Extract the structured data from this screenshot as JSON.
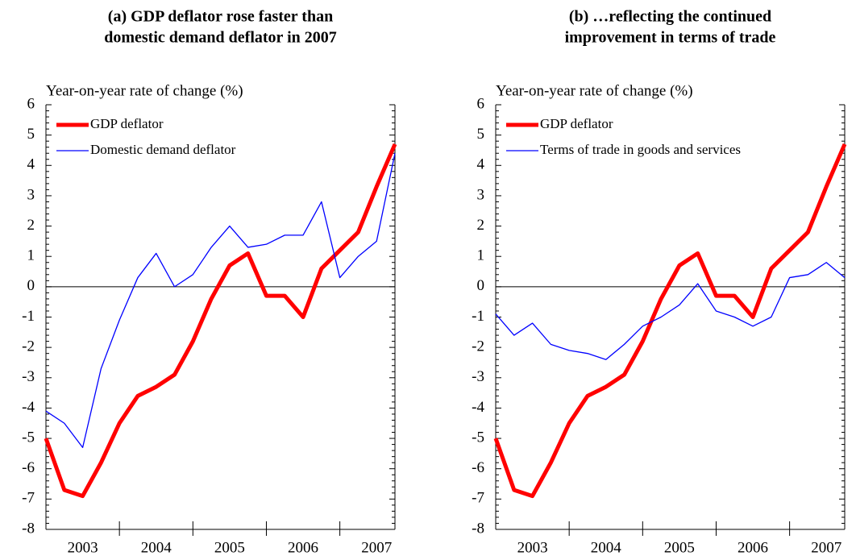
{
  "chart_data": [
    {
      "type": "line",
      "title": [
        "(a) GDP deflator rose faster than",
        "domestic demand deflator in 2007"
      ],
      "y_label": "Year-on-year rate of change (%)",
      "categories": [
        null,
        null,
        "2003",
        null,
        null,
        null,
        "2004",
        null,
        null,
        null,
        "2005",
        null,
        null,
        null,
        "2006",
        null,
        null,
        null,
        "2007",
        null
      ],
      "ylim": [
        -8,
        6
      ],
      "yticks": [
        -8,
        -7,
        -6,
        -5,
        -4,
        -3,
        -2,
        -1,
        0,
        1,
        2,
        3,
        4,
        5,
        6
      ],
      "series": [
        {
          "name": "GDP deflator",
          "color": "#ff0000",
          "values": [
            -5.0,
            -6.7,
            -6.9,
            -5.8,
            -4.5,
            -3.6,
            -3.3,
            -2.9,
            -1.8,
            -0.4,
            0.7,
            1.1,
            -0.3,
            -0.3,
            -1.0,
            0.6,
            1.2,
            1.8,
            3.3,
            4.7
          ]
        },
        {
          "name": "Domestic demand deflator",
          "color": "#0000ff",
          "values": [
            -4.1,
            -4.5,
            -5.3,
            -2.7,
            -1.1,
            0.3,
            1.1,
            0.0,
            0.4,
            1.3,
            2.0,
            1.3,
            1.4,
            1.7,
            1.7,
            2.8,
            0.3,
            1.0,
            1.5,
            4.4
          ]
        }
      ]
    },
    {
      "type": "line",
      "title": [
        "(b) …reflecting the continued",
        "improvement in terms of trade"
      ],
      "y_label": "Year-on-year rate of change (%)",
      "categories": [
        null,
        null,
        "2003",
        null,
        null,
        null,
        "2004",
        null,
        null,
        null,
        "2005",
        null,
        null,
        null,
        "2006",
        null,
        null,
        null,
        "2007",
        null
      ],
      "ylim": [
        -8,
        6
      ],
      "yticks": [
        -8,
        -7,
        -6,
        -5,
        -4,
        -3,
        -2,
        -1,
        0,
        1,
        2,
        3,
        4,
        5,
        6
      ],
      "series": [
        {
          "name": "GDP deflator",
          "color": "#ff0000",
          "values": [
            -5.0,
            -6.7,
            -6.9,
            -5.8,
            -4.5,
            -3.6,
            -3.3,
            -2.9,
            -1.8,
            -0.4,
            0.7,
            1.1,
            -0.3,
            -0.3,
            -1.0,
            0.6,
            1.2,
            1.8,
            3.3,
            4.7
          ]
        },
        {
          "name": "Terms of trade in goods and services",
          "color": "#0000ff",
          "values": [
            -0.9,
            -1.6,
            -1.2,
            -1.9,
            -2.1,
            -2.2,
            -2.4,
            -1.9,
            -1.3,
            -1.0,
            -0.6,
            0.1,
            -0.8,
            -1.0,
            -1.3,
            -1.0,
            0.3,
            0.4,
            0.8,
            0.3
          ]
        }
      ]
    }
  ]
}
